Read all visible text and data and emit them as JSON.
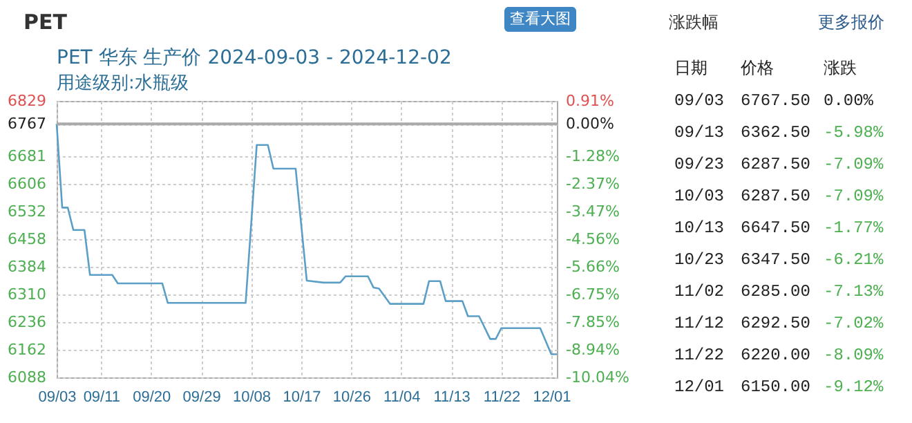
{
  "chart_data": [
    {
      "type": "line",
      "title": "PET 华东 生产价 2024-09-03 - 2024-12-02",
      "subtitle": "用途级别:水瓶级",
      "annotations": [
        "PET",
        "查看大图"
      ],
      "x": [
        "2024-09-03",
        "2024-09-04",
        "2024-09-05",
        "2024-09-06",
        "2024-09-08",
        "2024-09-09",
        "2024-09-13",
        "2024-09-14",
        "2024-09-22",
        "2024-09-23",
        "2024-10-07",
        "2024-10-09",
        "2024-10-11",
        "2024-10-12",
        "2024-10-16",
        "2024-10-18",
        "2024-10-21",
        "2024-10-24",
        "2024-10-25",
        "2024-10-29",
        "2024-10-30",
        "2024-10-31",
        "2024-11-02",
        "2024-11-08",
        "2024-11-09",
        "2024-11-11",
        "2024-11-12",
        "2024-11-15",
        "2024-11-16",
        "2024-11-18",
        "2024-11-20",
        "2024-11-21",
        "2024-11-22",
        "2024-11-29",
        "2024-12-01",
        "2024-12-02"
      ],
      "series": [
        {
          "color": "#5b9fc6",
          "values": [
            6767.5,
            6543,
            6543,
            6483,
            6483,
            6362.5,
            6362.5,
            6340,
            6340,
            6287.5,
            6287.5,
            6711,
            6711,
            6647.5,
            6647.5,
            6347.5,
            6342,
            6342,
            6359,
            6359,
            6329,
            6326,
            6285,
            6285,
            6346,
            6346,
            6292.5,
            6292.5,
            6252,
            6252,
            6191,
            6191,
            6220,
            6220,
            6150,
            6150
          ]
        }
      ],
      "xlim": [
        "2024-09-03",
        "2024-12-02"
      ],
      "xticks": [
        {
          "value": "2024-09-03",
          "label": "09/03"
        },
        {
          "value": "2024-09-11",
          "label": "09/11"
        },
        {
          "value": "2024-09-20",
          "label": "09/20"
        },
        {
          "value": "2024-09-29",
          "label": "09/29"
        },
        {
          "value": "2024-10-08",
          "label": "10/08"
        },
        {
          "value": "2024-10-17",
          "label": "10/17"
        },
        {
          "value": "2024-10-26",
          "label": "10/26"
        },
        {
          "value": "2024-11-04",
          "label": "11/04"
        },
        {
          "value": "2024-11-13",
          "label": "11/13"
        },
        {
          "value": "2024-11-22",
          "label": "11/22"
        },
        {
          "value": "2024-12-01",
          "label": "12/01"
        }
      ],
      "ylim": [
        6088,
        6829
      ],
      "yticks": [
        6088,
        6162,
        6236,
        6310,
        6384,
        6458,
        6532,
        6606,
        6681,
        6767,
        6829
      ],
      "y2lim": [
        -10.04,
        0.91
      ],
      "y2ticks": [
        {
          "value": -10.04,
          "label": "-10.04%"
        },
        {
          "value": -8.94,
          "label": "-8.94%"
        },
        {
          "value": -7.85,
          "label": "-7.85%"
        },
        {
          "value": -6.75,
          "label": "-6.75%"
        },
        {
          "value": -5.66,
          "label": "-5.66%"
        },
        {
          "value": -4.56,
          "label": "-4.56%"
        },
        {
          "value": -3.47,
          "label": "-3.47%"
        },
        {
          "value": -2.37,
          "label": "-2.37%"
        },
        {
          "value": -1.28,
          "label": "-1.28%"
        },
        {
          "value": 0,
          "label": "0.00%"
        },
        {
          "value": 0.91,
          "label": "0.91%"
        }
      ],
      "ref_lines": [
        {
          "axis": "y2",
          "value": 0,
          "color": "#aaaaaa"
        }
      ],
      "grid": true
    },
    {
      "type": "other",
      "title": "涨跌幅",
      "annotations": [
        "更多报价",
        "日期",
        "价格",
        "涨跌",
        "09/03",
        "6767.50",
        "0.00%",
        "09/13",
        "6362.50",
        "-5.98%",
        "09/23",
        "6287.50",
        "-7.09%",
        "10/03",
        "6287.50",
        "-7.09%",
        "10/13",
        "6647.50",
        "-1.77%",
        "10/23",
        "6347.50",
        "-6.21%",
        "11/02",
        "6285.00",
        "-7.13%",
        "11/12",
        "6292.50",
        "-7.02%",
        "11/22",
        "6220.00",
        "-8.09%",
        "12/01",
        "6150.00",
        "-9.12%"
      ]
    }
  ]
}
